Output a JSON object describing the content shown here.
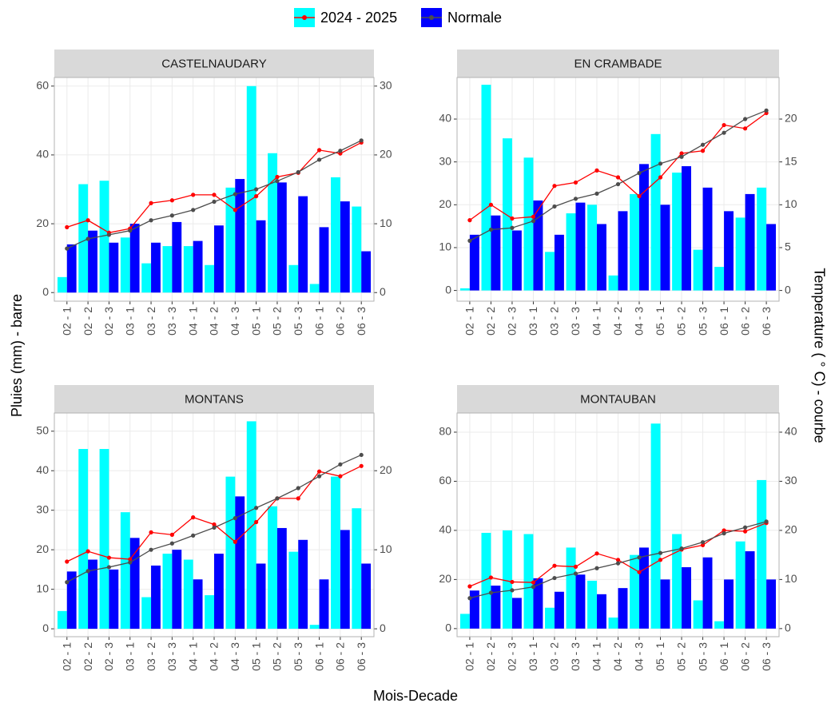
{
  "y_label": "Pluies (mm) - barre",
  "y2_label": "Temperature ( ° C) - courbe",
  "x_label": "Mois-Decade",
  "chart_data": [
    {
      "type": "bar",
      "title": "CASTELNAUDARY",
      "categories": [
        "02 - 1",
        "02 - 2",
        "02 - 3",
        "03 - 1",
        "03 - 2",
        "03 - 3",
        "04 - 1",
        "04 - 2",
        "04 - 3",
        "05 - 1",
        "05 - 2",
        "05 - 3",
        "06 - 1",
        "06 - 2",
        "06 - 3"
      ],
      "ylim": [
        -2.5,
        62.5
      ],
      "yticks": [
        0,
        20,
        40,
        60
      ],
      "y2lim": [
        -1.25,
        31.25
      ],
      "y2ticks": [
        0,
        10,
        20,
        30
      ],
      "grid": true,
      "series": [
        {
          "name": "2024 - 2025",
          "color": "#00ffff",
          "values": [
            4.5,
            31.5,
            32.5,
            16,
            8.5,
            13.5,
            13.5,
            8,
            30.5,
            60,
            40.5,
            8,
            2.5,
            33.5,
            25
          ]
        },
        {
          "name": "Normale",
          "color": "#0000ff",
          "values": [
            14,
            18,
            14.5,
            20,
            14.5,
            20.5,
            15,
            19.5,
            33,
            21,
            32,
            28,
            19,
            26.5,
            12
          ]
        },
        {
          "name": "2024 - 2025",
          "color": "#ff0000",
          "axis": "y2",
          "type": "line",
          "values": [
            9.5,
            10.5,
            8.7,
            9.3,
            13,
            13.4,
            14.2,
            14.2,
            12,
            14,
            16.8,
            17.4,
            20.7,
            20.2,
            21.8
          ]
        },
        {
          "name": "Normale",
          "color": "#4d4d4d",
          "axis": "y2",
          "type": "line",
          "values": [
            6.4,
            7.8,
            8.4,
            9,
            10.5,
            11.2,
            12,
            13.2,
            14.3,
            15,
            16.2,
            17.5,
            19.3,
            20.6,
            22.1
          ]
        }
      ]
    },
    {
      "type": "bar",
      "title": "EN CRAMBADE",
      "categories": [
        "02 - 1",
        "02 - 2",
        "02 - 3",
        "03 - 1",
        "03 - 2",
        "03 - 3",
        "04 - 1",
        "04 - 2",
        "04 - 3",
        "05 - 1",
        "05 - 2",
        "05 - 3",
        "06 - 1",
        "06 - 2",
        "06 - 3"
      ],
      "ylim": [
        -2.5,
        49.7
      ],
      "yticks": [
        0,
        10,
        20,
        30,
        40
      ],
      "y2lim": [
        -1.25,
        24.85
      ],
      "y2ticks": [
        0,
        5,
        10,
        15,
        20
      ],
      "grid": true,
      "series": [
        {
          "name": "2024 - 2025",
          "color": "#00ffff",
          "values": [
            0.5,
            48,
            35.5,
            31,
            9,
            18,
            20,
            3.5,
            22.5,
            36.5,
            27.5,
            9.5,
            5.5,
            17,
            24
          ]
        },
        {
          "name": "Normale",
          "color": "#0000ff",
          "values": [
            13,
            17.5,
            14,
            21,
            13,
            20.5,
            15.5,
            18.5,
            29.5,
            20,
            29,
            24,
            18.5,
            22.5,
            15.5
          ]
        },
        {
          "name": "2024 - 2025",
          "color": "#ff0000",
          "axis": "y2",
          "type": "line",
          "values": [
            8.2,
            10,
            8.4,
            8.6,
            12.2,
            12.6,
            14,
            13.2,
            11,
            13.2,
            16,
            16.3,
            19.3,
            18.9,
            20.7
          ]
        },
        {
          "name": "Normale",
          "color": "#4d4d4d",
          "axis": "y2",
          "type": "line",
          "values": [
            5.8,
            7.1,
            7.3,
            8.1,
            9.8,
            10.7,
            11.3,
            12.4,
            13.7,
            14.8,
            15.6,
            17,
            18.4,
            20,
            21
          ]
        }
      ]
    },
    {
      "type": "bar",
      "title": "MONTANS",
      "categories": [
        "02 - 1",
        "02 - 2",
        "02 - 3",
        "03 - 1",
        "03 - 2",
        "03 - 3",
        "04 - 1",
        "04 - 2",
        "04 - 3",
        "05 - 1",
        "05 - 2",
        "05 - 3",
        "06 - 1",
        "06 - 2",
        "06 - 3"
      ],
      "ylim": [
        -2,
        54.6
      ],
      "yticks": [
        0,
        10,
        20,
        30,
        40,
        50
      ],
      "y2lim": [
        -1,
        27.3
      ],
      "y2ticks": [
        0,
        10,
        20
      ],
      "grid": true,
      "series": [
        {
          "name": "2024 - 2025",
          "color": "#00ffff",
          "values": [
            4.5,
            45.5,
            45.5,
            29.5,
            8,
            19,
            17.5,
            8.5,
            38.5,
            52.5,
            31,
            19.5,
            1,
            38.5,
            30.5
          ]
        },
        {
          "name": "Normale",
          "color": "#0000ff",
          "values": [
            14.5,
            17.5,
            15,
            23,
            16,
            20,
            12.5,
            19,
            33.5,
            16.5,
            25.5,
            22.5,
            12.5,
            25,
            16.5
          ]
        },
        {
          "name": "2024 - 2025",
          "color": "#ff0000",
          "axis": "y2",
          "type": "line",
          "values": [
            8.5,
            9.8,
            9,
            8.8,
            12.2,
            11.9,
            14.1,
            13.2,
            11,
            13.5,
            16.5,
            16.5,
            19.9,
            19.3,
            20.6
          ]
        },
        {
          "name": "Normale",
          "color": "#4d4d4d",
          "axis": "y2",
          "type": "line",
          "values": [
            5.9,
            7.3,
            7.8,
            8.4,
            10,
            10.8,
            11.8,
            12.8,
            14,
            15.3,
            16.5,
            17.8,
            19.3,
            20.8,
            22
          ]
        }
      ]
    },
    {
      "type": "bar",
      "title": "MONTAUBAN",
      "categories": [
        "02 - 1",
        "02 - 2",
        "02 - 3",
        "03 - 1",
        "03 - 2",
        "03 - 3",
        "04 - 1",
        "04 - 2",
        "04 - 3",
        "05 - 1",
        "05 - 2",
        "05 - 3",
        "06 - 1",
        "06 - 2",
        "06 - 3"
      ],
      "ylim": [
        -3.3,
        87.8
      ],
      "yticks": [
        0,
        20,
        40,
        60,
        80
      ],
      "y2lim": [
        -1.65,
        43.9
      ],
      "y2ticks": [
        0,
        10,
        20,
        30,
        40
      ],
      "grid": true,
      "series": [
        {
          "name": "2024 - 2025",
          "color": "#00ffff",
          "values": [
            6,
            39,
            40,
            38.5,
            8.5,
            33,
            19.5,
            4.5,
            30,
            83.5,
            38.5,
            11.5,
            3,
            35.5,
            60.5
          ]
        },
        {
          "name": "Normale",
          "color": "#0000ff",
          "values": [
            15.5,
            17.5,
            12.5,
            20.5,
            15,
            22,
            14,
            16.5,
            33,
            20,
            25,
            29,
            20,
            31.5,
            20
          ]
        },
        {
          "name": "2024 - 2025",
          "color": "#ff0000",
          "axis": "y2",
          "type": "line",
          "values": [
            8.6,
            10.4,
            9.5,
            9.4,
            12.8,
            12.6,
            15.3,
            14,
            11.5,
            14,
            16.1,
            17,
            20,
            19.8,
            21.5
          ]
        },
        {
          "name": "Normale",
          "color": "#4d4d4d",
          "axis": "y2",
          "type": "line",
          "values": [
            6.2,
            7.3,
            7.8,
            8.5,
            10.3,
            11.2,
            12.3,
            13.3,
            14.5,
            15.4,
            16.3,
            17.6,
            19.4,
            20.6,
            21.8
          ]
        }
      ]
    }
  ]
}
